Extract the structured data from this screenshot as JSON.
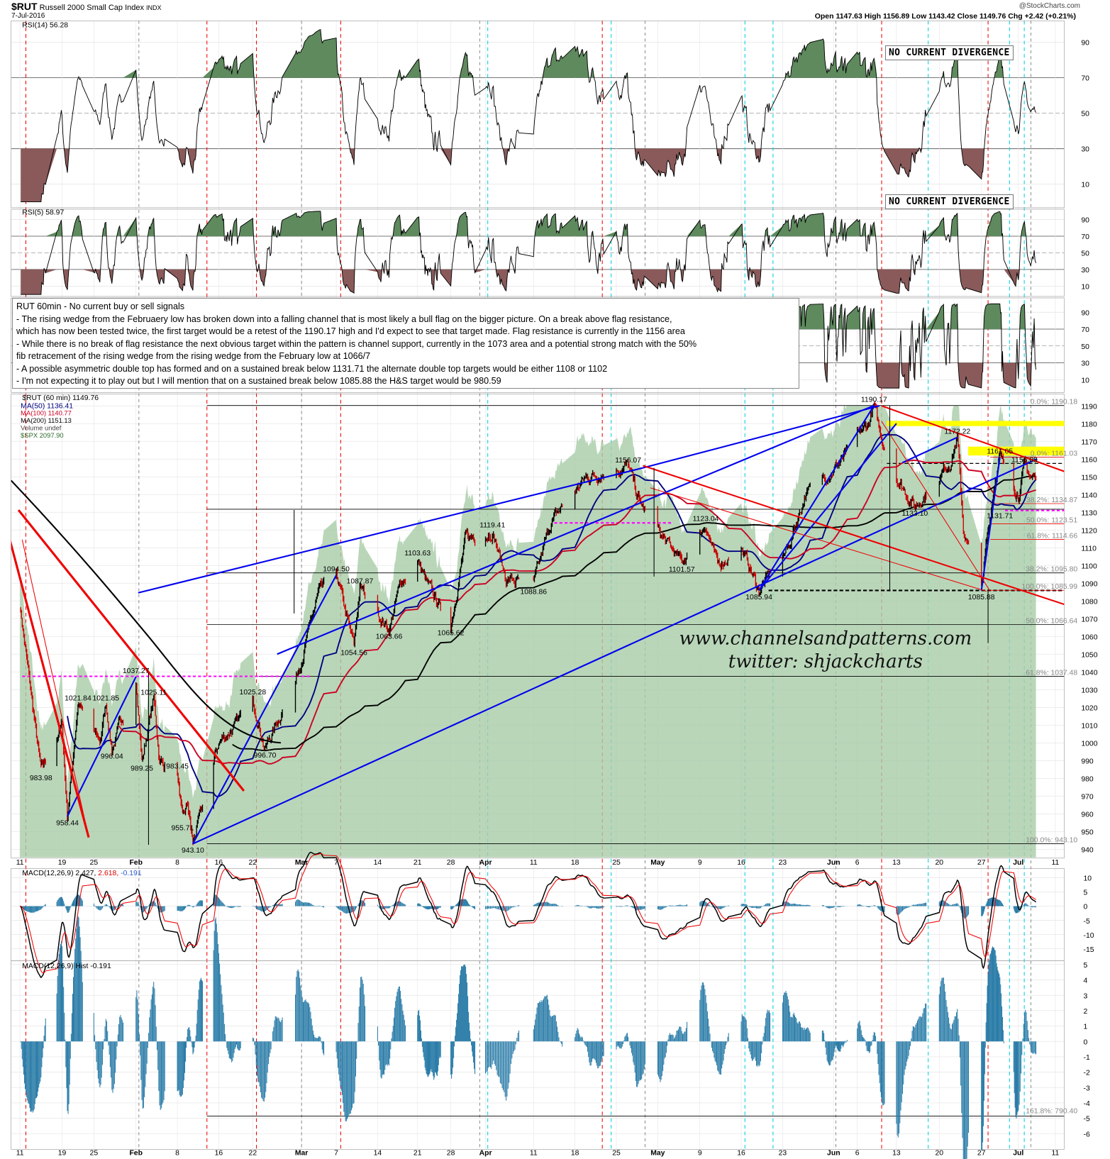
{
  "header": {
    "symbol": "$RUT",
    "name": "Russell 2000 Small Cap Index",
    "exchange": "INDX",
    "date": "7-Jul-2016",
    "brand": "@StockCharts.com",
    "ohlc": "Open 1147.63  High 1156.89  Low 1143.42  Close 1149.76  Chg +2.42 (+0.21%)"
  },
  "panels": {
    "rsi14_label": "RSI(14) 56.28",
    "rsi5_label": "RSI(5) 58.97",
    "price_label": "$RUT (60 min) 1149.76",
    "ma50_label": "MA(50) 1136.41",
    "ma100_label": "MA(100) 1140.77",
    "ma200_label": "MA(200) 1151.13",
    "volume_label": "Volume undef",
    "spx_label": "$SPX 2097.90",
    "macd_label": "MACD(12,26,9) 2.427,",
    "macd_signal": "2.618,",
    "macd_hist_value": "-0.191",
    "hist_label": "MACD(12,26,9) Hist -0.191"
  },
  "divergence_boxes": [
    "NO CURRENT DIVERGENCE",
    "NO CURRENT DIVERGENCE"
  ],
  "note": {
    "lines": [
      "RUT 60min - No current buy or sell signals",
      "- The rising wedge from the Februaery low has broken down into a falling channel that is most likely a bull flag on the bigger picture. On a break above flag resistance,",
      "which has now been tested twice, the first target would be a retest of the 1190.17 high and I'd expect to see that target made. Flag resistance is currently in the 1156 area",
      "- While there is no break of flag resistance the next obvious target within the pattern is channel support, currently in the 1073 area and a potential strong match with the 50%",
      "fib retracement of the rising wedge from the rising wedge from the February low at 1066/7",
      "- A possible asymmetric double top has formed and on a sustained break below 1131.71 the alternate double top targets would be either 1108 or 1102",
      "- I'm not expecting it to play out but I will mention that on a sustained break below 1085.88 the H&S target would be 980.59"
    ]
  },
  "watermark": {
    "site": "www.channelsandpatterns.com",
    "twitter": "twitter: shjackcharts"
  },
  "colors": {
    "price_up": "#000000",
    "price_down": "#cc0000",
    "ma50": "#000080",
    "ma100": "#cc0022",
    "ma200": "#000000",
    "spx_area": "#a8cca8",
    "rsi_ob": "#5e8a5e",
    "rsi_os": "#8a5a5a",
    "macd_hist": "#2a7ca8",
    "trend_blue": "#0000ee",
    "trend_red": "#ee0000",
    "highlight": "#ffff00",
    "fib_magenta": "#ff00ff"
  },
  "chart_data": {
    "type": "line",
    "title": "$RUT Russell 2000 Small Cap Index (60 min)",
    "x_ticks": [
      "11",
      "19",
      "25",
      "Feb",
      "8",
      "16",
      "22",
      "Mar",
      "7",
      "14",
      "21",
      "28",
      "Apr",
      "11",
      "18",
      "25",
      "May",
      "9",
      "16",
      "23",
      "Jun",
      "6",
      "13",
      "20",
      "27",
      "Jul",
      "11"
    ],
    "x_tick_dates": [
      "2016-01-11",
      "2016-01-19",
      "2016-01-25",
      "2016-02-01",
      "2016-02-08",
      "2016-02-16",
      "2016-02-22",
      "2016-03-01",
      "2016-03-07",
      "2016-03-14",
      "2016-03-21",
      "2016-03-28",
      "2016-04-04",
      "2016-04-11",
      "2016-04-18",
      "2016-04-25",
      "2016-05-02",
      "2016-05-09",
      "2016-05-16",
      "2016-05-23",
      "2016-06-01",
      "2016-06-06",
      "2016-06-13",
      "2016-06-20",
      "2016-06-27",
      "2016-07-05",
      "2016-07-11"
    ],
    "price_ylim": [
      935,
      1195
    ],
    "price_yticks": [
      940,
      950,
      960,
      970,
      980,
      990,
      1000,
      1010,
      1020,
      1030,
      1040,
      1050,
      1060,
      1070,
      1080,
      1090,
      1100,
      1110,
      1120,
      1130,
      1140,
      1150,
      1160,
      1170,
      1180,
      1190
    ],
    "rsi_yticks": [
      10,
      30,
      50,
      70,
      90
    ],
    "macd_yticks": [
      10,
      5,
      0,
      -5,
      -10,
      -15
    ],
    "hist_yticks": [
      5,
      4,
      3,
      2,
      1,
      0,
      -1,
      -2,
      -3,
      -4,
      -5,
      -6
    ],
    "price_points": [
      [
        "2016-01-11",
        1078
      ],
      [
        "2016-01-13",
        1030
      ],
      [
        "2016-01-15",
        983.98
      ],
      [
        "2016-01-19",
        1010
      ],
      [
        "2016-01-20",
        958.44
      ],
      [
        "2016-01-22",
        1021.84
      ],
      [
        "2016-01-26",
        1000
      ],
      [
        "2016-01-27",
        1021.85
      ],
      [
        "2016-01-28",
        996.04
      ],
      [
        "2016-02-01",
        1037.27
      ],
      [
        "2016-02-02",
        989.25
      ],
      [
        "2016-02-04",
        1025.11
      ],
      [
        "2016-02-05",
        990
      ],
      [
        "2016-02-08",
        983.45
      ],
      [
        "2016-02-09",
        955.71
      ],
      [
        "2016-02-10",
        965
      ],
      [
        "2016-02-11",
        943.1
      ],
      [
        "2016-02-16",
        1000
      ],
      [
        "2016-02-19",
        1010
      ],
      [
        "2016-02-22",
        1025.28
      ],
      [
        "2016-02-24",
        996.7
      ],
      [
        "2016-02-29",
        1035
      ],
      [
        "2016-03-04",
        1085
      ],
      [
        "2016-03-07",
        1094.5
      ],
      [
        "2016-03-10",
        1054.56
      ],
      [
        "2016-03-11",
        1087.87
      ],
      [
        "2016-03-16",
        1063.66
      ],
      [
        "2016-03-18",
        1090
      ],
      [
        "2016-03-21",
        1103.63
      ],
      [
        "2016-03-23",
        1090
      ],
      [
        "2016-03-28",
        1065.62
      ],
      [
        "2016-03-31",
        1115
      ],
      [
        "2016-04-05",
        1119.41
      ],
      [
        "2016-04-07",
        1092
      ],
      [
        "2016-04-11",
        1088.86
      ],
      [
        "2016-04-14",
        1125
      ],
      [
        "2016-04-20",
        1150
      ],
      [
        "2016-04-27",
        1156.07
      ],
      [
        "2016-04-29",
        1135
      ],
      [
        "2016-05-03",
        1115
      ],
      [
        "2016-05-06",
        1101.57
      ],
      [
        "2016-05-10",
        1123.04
      ],
      [
        "2016-05-12",
        1100
      ],
      [
        "2016-05-16",
        1110
      ],
      [
        "2016-05-19",
        1085.94
      ],
      [
        "2016-05-24",
        1110
      ],
      [
        "2016-05-27",
        1140
      ],
      [
        "2016-06-03",
        1160
      ],
      [
        "2016-06-08",
        1180
      ],
      [
        "2016-06-09",
        1190.17
      ],
      [
        "2016-06-10",
        1175
      ],
      [
        "2016-06-13",
        1150
      ],
      [
        "2016-06-16",
        1133.1
      ],
      [
        "2016-06-20",
        1150
      ],
      [
        "2016-06-22",
        1160
      ],
      [
        "2016-06-23",
        1172.22
      ],
      [
        "2016-06-24",
        1120
      ],
      [
        "2016-06-27",
        1085.88
      ],
      [
        "2016-06-28",
        1110
      ],
      [
        "2016-06-30",
        1150
      ],
      [
        "2016-07-01",
        1161.05
      ],
      [
        "2016-07-05",
        1140
      ],
      [
        "2016-07-06",
        1156.09
      ],
      [
        "2016-07-07",
        1149.76
      ]
    ],
    "price_labels": [
      [
        "958.44",
        "2016-01-20",
        958.44,
        "below"
      ],
      [
        "983.98",
        "2016-01-15",
        983.98,
        "below"
      ],
      [
        "1021.84",
        "2016-01-22",
        1021.84,
        "above"
      ],
      [
        "1021.85",
        "2016-01-27",
        1021.85,
        "above"
      ],
      [
        "996.04",
        "2016-01-28",
        996.04,
        "below"
      ],
      [
        "1037.27",
        "2016-02-01",
        1037.27,
        "above"
      ],
      [
        "989.25",
        "2016-02-02",
        989.25,
        "below"
      ],
      [
        "1025.11",
        "2016-02-04",
        1025.11,
        "above"
      ],
      [
        "983.45",
        "2016-02-08",
        983.45,
        "above"
      ],
      [
        "955.71",
        "2016-02-09",
        955.71,
        "below"
      ],
      [
        "943.10",
        "2016-02-11",
        943.1,
        "below"
      ],
      [
        "1025.28",
        "2016-02-22",
        1025.28,
        "above"
      ],
      [
        "996.70",
        "2016-02-24",
        996.7,
        "below"
      ],
      [
        "1094.50",
        "2016-03-07",
        1094.5,
        "above"
      ],
      [
        "1054.56",
        "2016-03-10",
        1054.56,
        "below"
      ],
      [
        "1087.87",
        "2016-03-11",
        1087.87,
        "above"
      ],
      [
        "1063.66",
        "2016-03-16",
        1063.66,
        "below"
      ],
      [
        "1103.63",
        "2016-03-21",
        1103.63,
        "above"
      ],
      [
        "1065.62",
        "2016-03-28",
        1065.62,
        "below"
      ],
      [
        "1119.41",
        "2016-04-05",
        1119.41,
        "above"
      ],
      [
        "1088.86",
        "2016-04-11",
        1088.86,
        "below"
      ],
      [
        "1156.07",
        "2016-04-27",
        1156.07,
        "above"
      ],
      [
        "1101.57",
        "2016-05-06",
        1101.57,
        "below"
      ],
      [
        "1123.04",
        "2016-05-10",
        1123.04,
        "above"
      ],
      [
        "1085.94",
        "2016-05-19",
        1085.94,
        "below"
      ],
      [
        "1190.17",
        "2016-06-09",
        1190.17,
        "above"
      ],
      [
        "1133.10",
        "2016-06-16",
        1133.1,
        "below"
      ],
      [
        "1172.22",
        "2016-06-23",
        1172.22,
        "above"
      ],
      [
        "1085.88",
        "2016-06-27",
        1085.88,
        "below"
      ],
      [
        "1161.05",
        "2016-07-01",
        1161.05,
        "above"
      ],
      [
        "1156.09",
        "2016-07-06",
        1156.09,
        "above"
      ],
      [
        "1131.71",
        "2016-07-01",
        1131.71,
        "below"
      ]
    ],
    "fib_labels": [
      [
        "0.0%: 1190.18",
        1190.18
      ],
      [
        "0.0%: 1161.03",
        1161.03
      ],
      [
        "38.2%: 1134.87",
        1134.87
      ],
      [
        "50.0%: 1123.51",
        1123.51
      ],
      [
        "61.8%: 1114.66",
        1114.66
      ],
      [
        "38.2%: 1095.80",
        1095.8
      ],
      [
        "100.0%: 1085.99",
        1085.99
      ],
      [
        "50.0%: 1066.64",
        1066.64
      ],
      [
        "61.8%: 1037.48",
        1037.48
      ],
      [
        "100.0%: 943.10",
        943.1
      ]
    ],
    "hist_fib_label": "161.8%: 790.40",
    "trendlines_blue": [
      [
        [
          "2016-02-11",
          943.1
        ],
        [
          "2016-07-08",
          1160
        ]
      ],
      [
        [
          "2016-02-11",
          943.1
        ],
        [
          "2016-03-07",
          1094.5
        ]
      ],
      [
        [
          "2016-02-26",
          1050
        ],
        [
          "2016-06-09",
          1190.17
        ]
      ],
      [
        [
          "2016-01-20",
          958.44
        ],
        [
          "2016-02-01",
          1037.27
        ]
      ],
      [
        [
          "2016-05-19",
          1085.94
        ],
        [
          "2016-06-09",
          1190.17
        ]
      ],
      [
        [
          "2016-05-19",
          1085.94
        ],
        [
          "2016-06-13",
          1180
        ]
      ],
      [
        [
          "2016-06-14",
          1158
        ],
        [
          "2016-06-23",
          1172.22
        ]
      ],
      [
        [
          "2016-06-27",
          1085.88
        ],
        [
          "2016-07-01",
          1161.05
        ]
      ]
    ],
    "trendlines_red": [
      [
        [
          "2016-01-05",
          1075
        ],
        [
          "2016-02-05",
          1095
        ],
        [
          "2016-01-11",
          1080
        ]
      ],
      [
        [
          "2016-06-09",
          1190.17
        ],
        [
          "2016-07-11",
          1145
        ]
      ],
      [
        [
          "2016-04-27",
          1156.07
        ],
        [
          "2016-07-11",
          1070
        ]
      ],
      [
        [
          "2016-01-11",
          1085
        ],
        [
          "2016-02-17",
          975
        ]
      ],
      [
        [
          "2016-01-09",
          1073
        ],
        [
          "2016-01-22",
          945
        ]
      ]
    ]
  }
}
